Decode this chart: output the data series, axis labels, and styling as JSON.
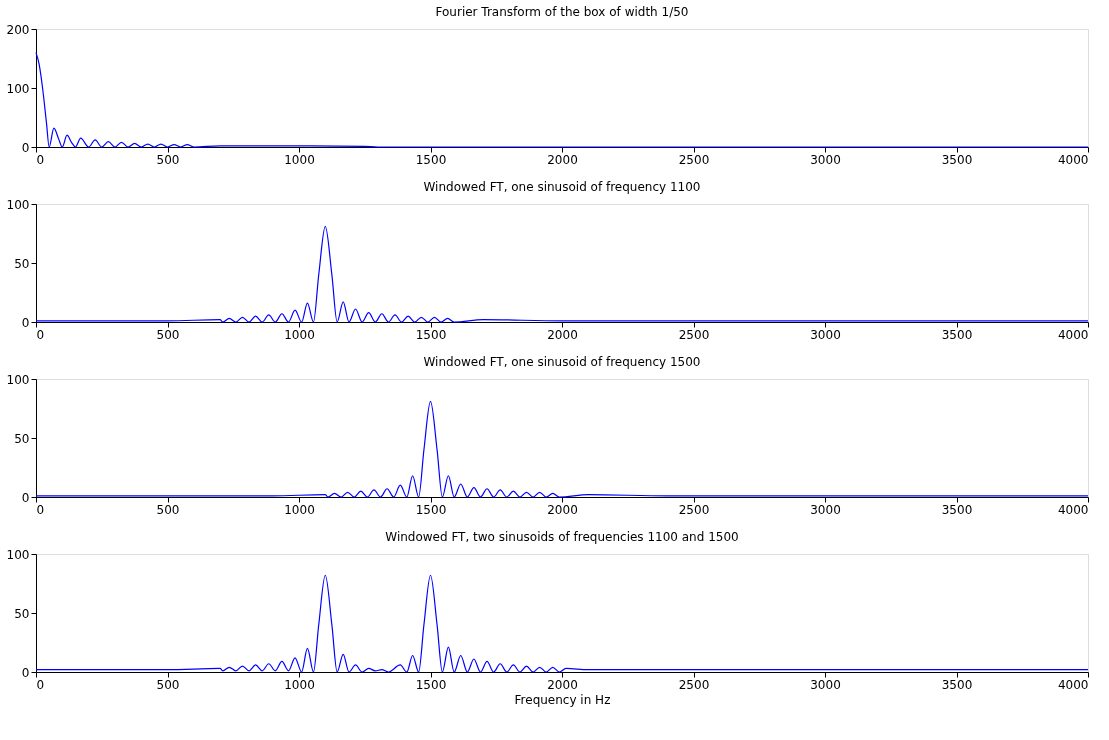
{
  "chart_data": [
    {
      "type": "line",
      "title": "Fourier Transform of the box of width 1/50",
      "xlim": [
        0,
        4000
      ],
      "xticks": [
        0,
        500,
        1000,
        1500,
        2000,
        2500,
        3000,
        3500,
        4000
      ],
      "ylim": [
        0,
        200
      ],
      "yticks": [
        0,
        100,
        200
      ],
      "grid": false,
      "series": [
        {
          "color": "#0000ff",
          "x": [
            0,
            12,
            25,
            40,
            50,
            68,
            85,
            100,
            118,
            135,
            150,
            170,
            200,
            225,
            250,
            275,
            300,
            325,
            350,
            375,
            400,
            425,
            450,
            475,
            500,
            525,
            550,
            575,
            600,
            700,
            1000,
            1250,
            1300,
            4000
          ],
          "values": [
            160,
            140,
            100,
            40,
            0,
            32,
            15,
            0,
            20,
            8,
            0,
            15,
            0,
            12,
            0,
            9,
            0,
            8,
            0,
            6,
            0,
            5,
            0,
            5,
            0,
            4,
            0,
            4,
            0,
            2,
            2,
            1,
            0,
            0
          ]
        }
      ]
    },
    {
      "type": "line",
      "title": "Windowed FT, one sinusoid of frequency 1100",
      "xlim": [
        0,
        4000
      ],
      "xticks": [
        0,
        500,
        1000,
        1500,
        2000,
        2500,
        3000,
        3500,
        4000
      ],
      "ylim": [
        0,
        100
      ],
      "yticks": [
        0,
        50,
        100
      ],
      "grid": false,
      "series": [
        {
          "color": "#0000ff",
          "x": [
            0,
            500,
            700,
            710,
            735,
            760,
            785,
            810,
            835,
            860,
            885,
            910,
            935,
            960,
            985,
            1010,
            1032,
            1055,
            1075,
            1100,
            1125,
            1145,
            1168,
            1190,
            1215,
            1240,
            1265,
            1290,
            1315,
            1340,
            1365,
            1390,
            1415,
            1440,
            1465,
            1490,
            1515,
            1540,
            1565,
            1590,
            1700,
            2000,
            4000
          ],
          "values": [
            1,
            1,
            2,
            0,
            3,
            0,
            4,
            0,
            5,
            0,
            6,
            0,
            7,
            0,
            10,
            0,
            16,
            0,
            40,
            81,
            40,
            0,
            17,
            0,
            11,
            0,
            8,
            0,
            7,
            0,
            6,
            0,
            5,
            0,
            4,
            0,
            4,
            0,
            3,
            0,
            2,
            1,
            1
          ]
        }
      ]
    },
    {
      "type": "line",
      "title": "Windowed FT, one sinusoid of frequency 1500",
      "xlim": [
        0,
        4000
      ],
      "xticks": [
        0,
        500,
        1000,
        1500,
        2000,
        2500,
        3000,
        3500,
        4000
      ],
      "ylim": [
        0,
        100
      ],
      "yticks": [
        0,
        50,
        100
      ],
      "grid": false,
      "series": [
        {
          "color": "#0000ff",
          "x": [
            0,
            900,
            1100,
            1110,
            1135,
            1160,
            1185,
            1210,
            1235,
            1260,
            1285,
            1310,
            1335,
            1360,
            1385,
            1410,
            1432,
            1455,
            1475,
            1500,
            1525,
            1545,
            1568,
            1590,
            1615,
            1640,
            1665,
            1690,
            1715,
            1740,
            1765,
            1790,
            1815,
            1840,
            1865,
            1890,
            1915,
            1940,
            1965,
            1990,
            2100,
            2400,
            4000
          ],
          "values": [
            1,
            1,
            2,
            0,
            3,
            0,
            4,
            0,
            5,
            0,
            6,
            0,
            7,
            0,
            10,
            0,
            18,
            0,
            40,
            81,
            40,
            0,
            18,
            0,
            11,
            0,
            8,
            0,
            7,
            0,
            6,
            0,
            5,
            0,
            4,
            0,
            4,
            0,
            3,
            0,
            2,
            1,
            1
          ]
        }
      ]
    },
    {
      "type": "line",
      "title": "Windowed FT, two sinusoids of frequencies 1100 and 1500",
      "xlabel": "Frequency in Hz",
      "xlim": [
        0,
        4000
      ],
      "xticks": [
        0,
        500,
        1000,
        1500,
        2000,
        2500,
        3000,
        3500,
        4000
      ],
      "ylim": [
        0,
        100
      ],
      "yticks": [
        0,
        50,
        100
      ],
      "grid": false,
      "series": [
        {
          "color": "#0000ff",
          "x": [
            0,
            500,
            700,
            710,
            735,
            760,
            785,
            810,
            835,
            860,
            885,
            910,
            935,
            960,
            985,
            1010,
            1032,
            1055,
            1075,
            1100,
            1125,
            1145,
            1168,
            1190,
            1215,
            1240,
            1265,
            1290,
            1315,
            1340,
            1385,
            1410,
            1432,
            1455,
            1475,
            1500,
            1525,
            1545,
            1568,
            1590,
            1615,
            1640,
            1665,
            1690,
            1715,
            1740,
            1765,
            1790,
            1815,
            1840,
            1865,
            1890,
            1915,
            1940,
            1965,
            1990,
            2015,
            2100,
            2500,
            4000
          ],
          "values": [
            2,
            2,
            3,
            1,
            4,
            1,
            5,
            1,
            6,
            1,
            7,
            1,
            9,
            1,
            12,
            0,
            20,
            0,
            40,
            82,
            40,
            0,
            15,
            0,
            6,
            0,
            3,
            1,
            2,
            0,
            6,
            0,
            14,
            0,
            40,
            82,
            40,
            0,
            21,
            0,
            14,
            0,
            11,
            0,
            9,
            0,
            7,
            0,
            6,
            0,
            5,
            0,
            4,
            0,
            4,
            0,
            3,
            2,
            2,
            2
          ]
        }
      ]
    }
  ]
}
